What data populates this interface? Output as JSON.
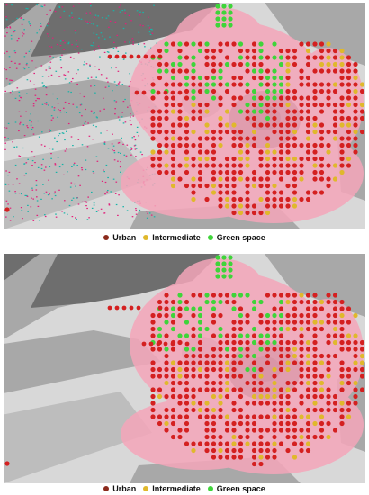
{
  "legend": {
    "items": [
      {
        "label": "Urban",
        "color": "#8b2a1c"
      },
      {
        "label": "Intermediate",
        "color": "#e0b82c"
      },
      {
        "label": "Green space",
        "color": "#3fd43a"
      }
    ]
  },
  "colors": {
    "urban_point": "#d42020",
    "urban_halo": "#f5a6ba",
    "intermediate_point": "#e0b82c",
    "green_point": "#3fd43a",
    "background_light": "#d8d8d8",
    "background_mid": "#a8a8a8",
    "background_dark": "#6e6e6e",
    "background_darkest": "#3f3f3f"
  },
  "maps": [
    {
      "name": "top",
      "west_background": "light-grey with red/teal scatter speckle"
    },
    {
      "name": "bottom",
      "west_background": "plain grey"
    }
  ]
}
